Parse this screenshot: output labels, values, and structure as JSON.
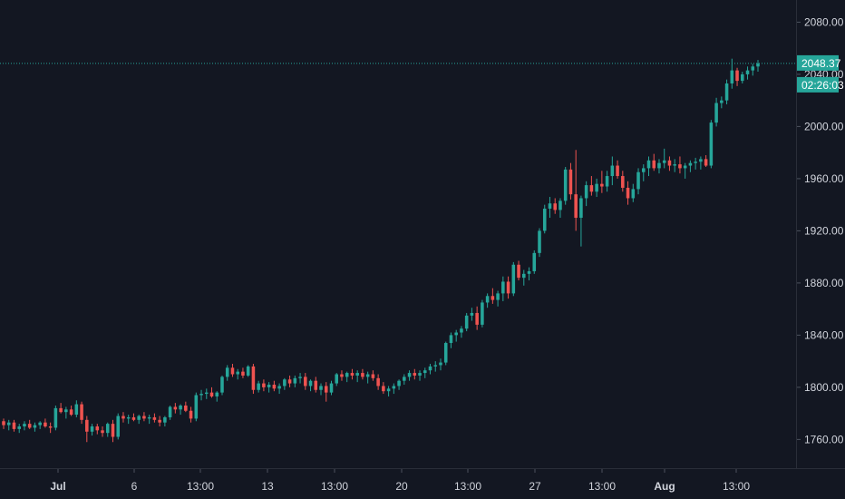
{
  "colors": {
    "background": "#131722",
    "up": "#26a69a",
    "down": "#ef5350",
    "axis_text": "#d1d4dc",
    "axis_line": "#2a2e39",
    "price_line": "#26a69a",
    "label_bg": "#26a69a"
  },
  "price_axis": {
    "ticks": [
      "2080.00",
      "2040.00",
      "2000.00",
      "1960.00",
      "1920.00",
      "1880.00",
      "1840.00",
      "1800.00",
      "1760.00"
    ],
    "current_price": "2048.37",
    "countdown": "02:26:03"
  },
  "time_axis": {
    "ticks": [
      {
        "label": "Jul",
        "bold": true
      },
      {
        "label": "6",
        "bold": false
      },
      {
        "label": "13:00",
        "bold": false
      },
      {
        "label": "13",
        "bold": false
      },
      {
        "label": "13:00",
        "bold": false
      },
      {
        "label": "20",
        "bold": false
      },
      {
        "label": "13:00",
        "bold": false
      },
      {
        "label": "27",
        "bold": false
      },
      {
        "label": "13:00",
        "bold": false
      },
      {
        "label": "Aug",
        "bold": true
      },
      {
        "label": "13:00",
        "bold": false
      }
    ]
  },
  "chart_data": {
    "type": "candlestick",
    "title": "",
    "xlabel": "",
    "ylabel": "",
    "ylim": [
      1738,
      2097
    ],
    "grid": false,
    "last_price": 2048.37,
    "ohlc": [
      [
        1774,
        1776,
        1768,
        1771
      ],
      [
        1771,
        1775,
        1767,
        1773
      ],
      [
        1773,
        1775,
        1766,
        1768
      ],
      [
        1768,
        1772,
        1765,
        1770
      ],
      [
        1770,
        1774,
        1767,
        1772
      ],
      [
        1772,
        1775,
        1768,
        1769
      ],
      [
        1769,
        1773,
        1766,
        1771
      ],
      [
        1771,
        1774,
        1768,
        1773
      ],
      [
        1773,
        1776,
        1769,
        1770
      ],
      [
        1770,
        1773,
        1765,
        1769
      ],
      [
        1769,
        1786,
        1767,
        1784
      ],
      [
        1784,
        1788,
        1780,
        1781
      ],
      [
        1781,
        1785,
        1776,
        1783
      ],
      [
        1783,
        1786,
        1778,
        1779
      ],
      [
        1779,
        1790,
        1777,
        1787
      ],
      [
        1787,
        1789,
        1772,
        1775
      ],
      [
        1775,
        1778,
        1758,
        1766
      ],
      [
        1766,
        1772,
        1763,
        1770
      ],
      [
        1770,
        1772,
        1764,
        1767
      ],
      [
        1767,
        1770,
        1762,
        1765
      ],
      [
        1765,
        1773,
        1762,
        1772
      ],
      [
        1772,
        1775,
        1758,
        1762
      ],
      [
        1762,
        1780,
        1760,
        1778
      ],
      [
        1778,
        1781,
        1773,
        1776
      ],
      [
        1776,
        1779,
        1772,
        1777
      ],
      [
        1777,
        1780,
        1774,
        1775
      ],
      [
        1775,
        1779,
        1772,
        1778
      ],
      [
        1778,
        1781,
        1774,
        1776
      ],
      [
        1776,
        1779,
        1772,
        1777
      ],
      [
        1777,
        1780,
        1773,
        1775
      ],
      [
        1775,
        1778,
        1770,
        1773
      ],
      [
        1773,
        1778,
        1770,
        1777
      ],
      [
        1777,
        1786,
        1775,
        1785
      ],
      [
        1785,
        1788,
        1780,
        1783
      ],
      [
        1783,
        1787,
        1779,
        1786
      ],
      [
        1786,
        1789,
        1781,
        1782
      ],
      [
        1782,
        1785,
        1773,
        1776
      ],
      [
        1776,
        1796,
        1774,
        1794
      ],
      [
        1794,
        1798,
        1790,
        1795
      ],
      [
        1795,
        1799,
        1791,
        1796
      ],
      [
        1796,
        1800,
        1792,
        1793
      ],
      [
        1793,
        1797,
        1789,
        1796
      ],
      [
        1796,
        1809,
        1794,
        1808
      ],
      [
        1808,
        1817,
        1805,
        1815
      ],
      [
        1815,
        1818,
        1808,
        1810
      ],
      [
        1810,
        1814,
        1806,
        1812
      ],
      [
        1812,
        1815,
        1807,
        1809
      ],
      [
        1809,
        1817,
        1808,
        1816
      ],
      [
        1816,
        1818,
        1795,
        1798
      ],
      [
        1798,
        1805,
        1796,
        1803
      ],
      [
        1803,
        1806,
        1797,
        1800
      ],
      [
        1800,
        1804,
        1796,
        1802
      ],
      [
        1802,
        1805,
        1797,
        1799
      ],
      [
        1799,
        1803,
        1795,
        1801
      ],
      [
        1801,
        1807,
        1798,
        1806
      ],
      [
        1806,
        1809,
        1800,
        1803
      ],
      [
        1803,
        1809,
        1800,
        1807
      ],
      [
        1807,
        1811,
        1803,
        1808
      ],
      [
        1808,
        1811,
        1798,
        1801
      ],
      [
        1801,
        1806,
        1797,
        1805
      ],
      [
        1805,
        1808,
        1796,
        1798
      ],
      [
        1798,
        1803,
        1794,
        1801
      ],
      [
        1801,
        1804,
        1789,
        1796
      ],
      [
        1796,
        1805,
        1794,
        1803
      ],
      [
        1803,
        1811,
        1801,
        1810
      ],
      [
        1810,
        1813,
        1805,
        1808
      ],
      [
        1808,
        1812,
        1804,
        1811
      ],
      [
        1811,
        1814,
        1806,
        1809
      ],
      [
        1809,
        1813,
        1804,
        1811
      ],
      [
        1811,
        1814,
        1806,
        1808
      ],
      [
        1808,
        1812,
        1803,
        1810
      ],
      [
        1810,
        1813,
        1805,
        1807
      ],
      [
        1807,
        1810,
        1798,
        1801
      ],
      [
        1801,
        1804,
        1795,
        1797
      ],
      [
        1797,
        1801,
        1793,
        1799
      ],
      [
        1799,
        1803,
        1795,
        1801
      ],
      [
        1801,
        1806,
        1798,
        1805
      ],
      [
        1805,
        1810,
        1802,
        1808
      ],
      [
        1808,
        1813,
        1805,
        1811
      ],
      [
        1811,
        1814,
        1806,
        1809
      ],
      [
        1809,
        1813,
        1805,
        1811
      ],
      [
        1811,
        1815,
        1807,
        1813
      ],
      [
        1813,
        1818,
        1810,
        1816
      ],
      [
        1816,
        1820,
        1812,
        1817
      ],
      [
        1817,
        1822,
        1813,
        1819
      ],
      [
        1819,
        1835,
        1817,
        1834
      ],
      [
        1834,
        1842,
        1830,
        1840
      ],
      [
        1840,
        1844,
        1835,
        1842
      ],
      [
        1842,
        1847,
        1838,
        1845
      ],
      [
        1845,
        1857,
        1843,
        1855
      ],
      [
        1855,
        1861,
        1851,
        1857
      ],
      [
        1857,
        1862,
        1844,
        1848
      ],
      [
        1848,
        1867,
        1846,
        1865
      ],
      [
        1865,
        1872,
        1861,
        1870
      ],
      [
        1870,
        1876,
        1864,
        1867
      ],
      [
        1867,
        1874,
        1862,
        1872
      ],
      [
        1872,
        1885,
        1866,
        1881
      ],
      [
        1881,
        1885,
        1868,
        1872
      ],
      [
        1872,
        1896,
        1870,
        1894
      ],
      [
        1894,
        1897,
        1882,
        1884
      ],
      [
        1884,
        1890,
        1878,
        1887
      ],
      [
        1887,
        1892,
        1882,
        1889
      ],
      [
        1889,
        1905,
        1887,
        1903
      ],
      [
        1903,
        1922,
        1900,
        1920
      ],
      [
        1920,
        1940,
        1918,
        1937
      ],
      [
        1937,
        1946,
        1930,
        1941
      ],
      [
        1941,
        1945,
        1933,
        1936
      ],
      [
        1936,
        1945,
        1930,
        1943
      ],
      [
        1943,
        1969,
        1940,
        1967
      ],
      [
        1967,
        1972,
        1944,
        1948
      ],
      [
        1948,
        1982,
        1920,
        1930
      ],
      [
        1930,
        1947,
        1908,
        1945
      ],
      [
        1945,
        1958,
        1939,
        1955
      ],
      [
        1955,
        1962,
        1947,
        1950
      ],
      [
        1950,
        1960,
        1946,
        1956
      ],
      [
        1956,
        1966,
        1949,
        1954
      ],
      [
        1954,
        1966,
        1950,
        1962
      ],
      [
        1962,
        1977,
        1955,
        1970
      ],
      [
        1970,
        1974,
        1960,
        1962
      ],
      [
        1962,
        1966,
        1950,
        1953
      ],
      [
        1953,
        1958,
        1940,
        1945
      ],
      [
        1945,
        1956,
        1942,
        1952
      ],
      [
        1952,
        1968,
        1948,
        1965
      ],
      [
        1965,
        1971,
        1958,
        1968
      ],
      [
        1968,
        1977,
        1962,
        1974
      ],
      [
        1974,
        1979,
        1966,
        1968
      ],
      [
        1968,
        1975,
        1964,
        1972
      ],
      [
        1972,
        1983,
        1968,
        1974
      ],
      [
        1974,
        1977,
        1966,
        1970
      ],
      [
        1970,
        1975,
        1965,
        1971
      ],
      [
        1971,
        1977,
        1964,
        1968
      ],
      [
        1968,
        1972,
        1960,
        1970
      ],
      [
        1970,
        1974,
        1965,
        1972
      ],
      [
        1972,
        1976,
        1967,
        1973
      ],
      [
        1973,
        1977,
        1967,
        1975
      ],
      [
        1975,
        1978,
        1969,
        1970
      ],
      [
        1970,
        2005,
        1968,
        2003
      ],
      [
        2003,
        2022,
        2000,
        2018
      ],
      [
        2018,
        2023,
        2014,
        2020
      ],
      [
        2020,
        2036,
        2017,
        2033
      ],
      [
        2033,
        2052,
        2029,
        2043
      ],
      [
        2043,
        2045,
        2031,
        2035
      ],
      [
        2035,
        2042,
        2033,
        2040
      ],
      [
        2040,
        2046,
        2036,
        2043
      ],
      [
        2043,
        2048,
        2039,
        2046
      ],
      [
        2046,
        2051,
        2042,
        2048.37
      ]
    ]
  }
}
